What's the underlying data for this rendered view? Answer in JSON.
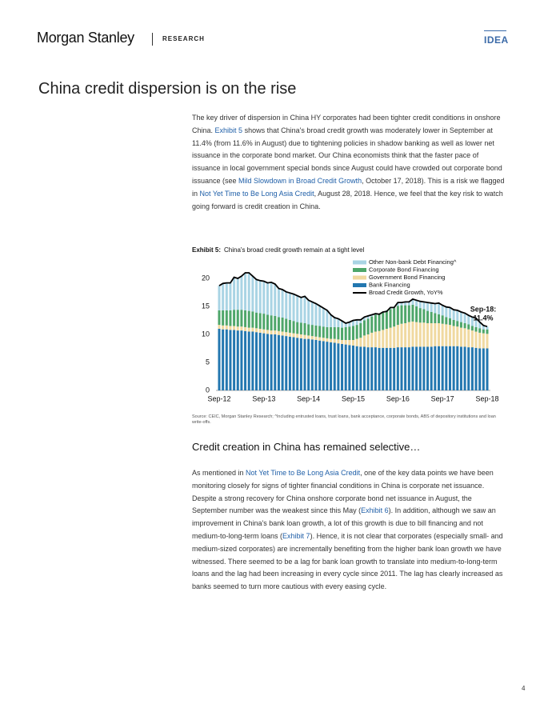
{
  "header": {
    "brand": "Morgan Stanley",
    "division": "RESEARCH",
    "tag": "IDEA"
  },
  "title": "China credit dispersion is on the rise",
  "paragraphs": [
    [
      "The key driver of dispersion in China HY corporates had been tighter credit conditions in onshore China. ",
      {
        "link": "Exhibit 5"
      },
      " shows that China's broad credit growth was moderately lower in September at 11.4% (from 11.6% in August) due to tightening policies in shadow banking as well as lower net issuance in the corporate bond market. Our China economists think that the faster pace of issuance in local government special bonds since August could have crowded out corporate bond issuance (see ",
      {
        "link": "Mild Slowdown in Broad Credit Growth"
      },
      ", October 17, 2018). This is a risk we flagged in ",
      {
        "link": "Not Yet Time to Be Long Asia Credit"
      },
      ", August 28, 2018. Hence, we feel that the key risk to watch going forward is credit creation in China."
    ],
    [
      "As mentioned in ",
      {
        "link": "Not Yet Time to Be Long Asia Credit"
      },
      ", one of the key data points we have been monitoring closely for signs of tighter financial conditions in China is corporate net issuance. Despite a strong recovery for China onshore corporate bond net issuance in August, the September number was the weakest since this May (",
      {
        "link": "Exhibit 6"
      },
      "). In addition, although we saw an improvement in China's bank loan growth, a lot of this growth is due to bill financing and not medium-to-long-term loans (",
      {
        "link": "Exhibit 7"
      },
      "). Hence, it is not clear that corporates (especially small- and medium-sized corporates) are incrementally benefiting from the higher bank loan growth we have witnessed. There seemed to be a lag for bank loan growth to translate into medium-to-long-term loans and the lag had been increasing in every cycle since 2011. The lag has clearly increased as banks seemed to turn more cautious with every easing cycle."
    ]
  ],
  "subheading": "Credit creation in China has remained selective…",
  "source_note": "Source: CEIC, Morgan Stanley Research; ^Including entrusted loans, trust loans, bank acceptance, corporate bonds, ABS of depository institutions and loan write-offs.",
  "page_number": "4",
  "chart_data": {
    "type": "bar",
    "stacked": true,
    "exhibit_label": "Exhibit 5:",
    "title": "China's broad credit growth remain at a tight level",
    "annotation": [
      "Sep-18:",
      "11.4%"
    ],
    "categories": [
      "Sep-12",
      null,
      null,
      null,
      null,
      null,
      null,
      null,
      null,
      null,
      null,
      null,
      "Sep-13",
      null,
      null,
      null,
      null,
      null,
      null,
      null,
      null,
      null,
      null,
      null,
      "Sep-14",
      null,
      null,
      null,
      null,
      null,
      null,
      null,
      null,
      null,
      null,
      null,
      "Sep-15",
      null,
      null,
      null,
      null,
      null,
      null,
      null,
      null,
      null,
      null,
      null,
      "Sep-16",
      null,
      null,
      null,
      null,
      null,
      null,
      null,
      null,
      null,
      null,
      null,
      "Sep-17",
      null,
      null,
      null,
      null,
      null,
      null,
      null,
      null,
      null,
      null,
      null,
      "Sep-18"
    ],
    "ylim": [
      0,
      22
    ],
    "yticks": [
      0,
      5,
      10,
      15,
      20
    ],
    "grid": false,
    "legend": "top-right",
    "series": [
      {
        "name": "Bank Financing",
        "color": "#2377b0",
        "values": [
          11.0,
          10.9,
          10.9,
          10.8,
          10.8,
          10.7,
          10.7,
          10.6,
          10.5,
          10.5,
          10.4,
          10.3,
          10.2,
          10.1,
          10.0,
          10.0,
          9.9,
          9.8,
          9.7,
          9.6,
          9.5,
          9.4,
          9.3,
          9.2,
          9.2,
          9.1,
          9.0,
          8.9,
          8.8,
          8.7,
          8.6,
          8.5,
          8.4,
          8.3,
          8.2,
          8.1,
          8.0,
          7.9,
          7.8,
          7.8,
          7.7,
          7.7,
          7.7,
          7.6,
          7.6,
          7.6,
          7.6,
          7.6,
          7.7,
          7.7,
          7.7,
          7.7,
          7.8,
          7.8,
          7.8,
          7.8,
          7.8,
          7.8,
          7.9,
          7.9,
          7.9,
          7.9,
          7.9,
          7.9,
          7.9,
          7.8,
          7.8,
          7.7,
          7.7,
          7.6,
          7.5,
          7.5,
          7.5
        ]
      },
      {
        "name": "Government Bond Financing",
        "color": "#f0d9a0",
        "values": [
          0.7,
          0.7,
          0.7,
          0.7,
          0.7,
          0.7,
          0.7,
          0.7,
          0.7,
          0.7,
          0.7,
          0.7,
          0.7,
          0.7,
          0.7,
          0.7,
          0.7,
          0.7,
          0.7,
          0.7,
          0.7,
          0.7,
          0.7,
          0.7,
          0.6,
          0.6,
          0.6,
          0.6,
          0.6,
          0.6,
          0.6,
          0.7,
          0.7,
          0.7,
          0.8,
          0.9,
          1.0,
          1.3,
          1.6,
          2.0,
          2.3,
          2.6,
          2.8,
          3.0,
          3.2,
          3.4,
          3.6,
          3.8,
          4.0,
          4.2,
          4.3,
          4.5,
          4.5,
          4.4,
          4.3,
          4.3,
          4.2,
          4.2,
          4.1,
          4.1,
          4.0,
          3.9,
          3.8,
          3.6,
          3.5,
          3.4,
          3.3,
          3.2,
          3.0,
          2.9,
          2.8,
          2.7,
          2.6
        ]
      },
      {
        "name": "Corporate Bond Financing",
        "color": "#4ea66a",
        "values": [
          2.6,
          2.7,
          2.7,
          2.8,
          2.9,
          3.0,
          3.0,
          3.0,
          3.0,
          2.9,
          2.8,
          2.8,
          2.8,
          2.7,
          2.7,
          2.6,
          2.5,
          2.5,
          2.4,
          2.3,
          2.2,
          2.1,
          2.1,
          2.1,
          2.0,
          2.0,
          2.0,
          2.0,
          2.0,
          2.0,
          2.1,
          2.1,
          2.2,
          2.2,
          2.3,
          2.4,
          2.5,
          2.5,
          2.6,
          2.7,
          2.8,
          2.9,
          3.0,
          3.0,
          3.1,
          3.2,
          3.3,
          3.3,
          3.4,
          3.3,
          3.2,
          3.0,
          3.0,
          2.8,
          2.6,
          2.4,
          2.2,
          2.0,
          1.8,
          1.6,
          1.5,
          1.3,
          1.2,
          1.1,
          1.0,
          1.0,
          0.9,
          0.9,
          0.8,
          0.8,
          0.8,
          0.7,
          0.8
        ]
      },
      {
        "name": "Other Non-bank Debt Financing^",
        "color": "#a9d4e4",
        "values": [
          4.4,
          4.8,
          4.9,
          4.9,
          5.8,
          5.6,
          6.0,
          6.7,
          6.8,
          6.3,
          5.9,
          5.8,
          5.8,
          5.7,
          5.9,
          5.7,
          5.1,
          5.0,
          4.8,
          4.8,
          4.8,
          4.7,
          4.5,
          4.8,
          4.3,
          4.1,
          3.9,
          3.6,
          3.3,
          3.0,
          2.2,
          1.7,
          1.5,
          1.2,
          0.7,
          0.8,
          1.0,
          0.9,
          0.6,
          0.6,
          0.5,
          0.3,
          0.2,
          0.0,
          0.1,
          0.1,
          0.3,
          0.1,
          0.6,
          0.5,
          0.6,
          0.6,
          1.0,
          1.1,
          1.2,
          1.3,
          1.5,
          1.6,
          1.7,
          2.0,
          1.8,
          1.8,
          1.9,
          1.8,
          1.9,
          1.8,
          1.8,
          1.6,
          1.6,
          1.6,
          1.1,
          0.7,
          0.5
        ]
      },
      {
        "name": "Broad Credit Growth, YoY%",
        "type": "line",
        "color": "#000000",
        "values": [
          18.7,
          19.1,
          19.2,
          19.2,
          20.2,
          20.0,
          20.4,
          21.0,
          21.0,
          20.4,
          19.8,
          19.6,
          19.5,
          19.2,
          19.3,
          19.0,
          18.2,
          18.0,
          17.6,
          17.4,
          17.2,
          16.9,
          16.6,
          16.8,
          16.1,
          15.8,
          15.5,
          15.1,
          14.7,
          14.3,
          13.5,
          13.0,
          12.8,
          12.4,
          12.0,
          12.2,
          12.5,
          12.6,
          12.6,
          13.1,
          13.3,
          13.5,
          13.7,
          13.6,
          14.0,
          14.1,
          14.8,
          14.8,
          15.7,
          15.7,
          15.8,
          15.8,
          16.3,
          16.1,
          15.9,
          15.8,
          15.7,
          15.6,
          15.5,
          15.6,
          15.2,
          14.9,
          14.8,
          14.4,
          14.3,
          14.0,
          13.8,
          13.4,
          13.1,
          12.9,
          12.2,
          11.6,
          11.4
        ]
      }
    ]
  }
}
